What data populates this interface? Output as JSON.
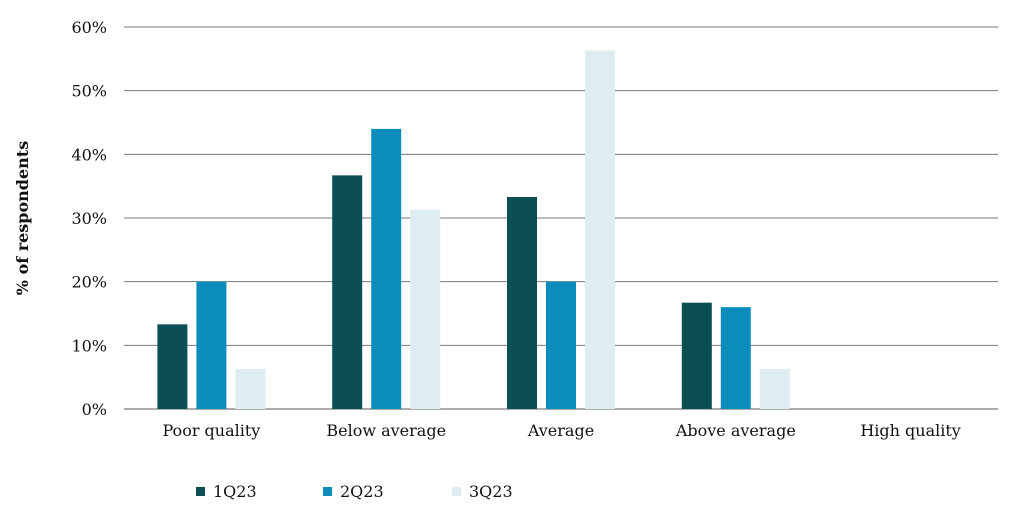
{
  "chart_data": {
    "type": "bar",
    "ylabel": "% of respondents",
    "categories": [
      "Poor quality",
      "Below average",
      "Average",
      "Above average",
      "High quality"
    ],
    "series": [
      {
        "name": "1Q23",
        "color": "#0b4f55",
        "values": [
          13.3,
          36.7,
          33.3,
          16.7,
          0
        ]
      },
      {
        "name": "2Q23",
        "color": "#0a8dbd",
        "values": [
          20.0,
          44.0,
          20.0,
          16.0,
          0
        ]
      },
      {
        "name": "3Q23",
        "color": "#deedf1",
        "values": [
          6.3,
          31.3,
          56.3,
          6.3,
          0
        ]
      }
    ],
    "ylim": [
      0,
      60
    ],
    "yticks": [
      0,
      10,
      20,
      30,
      40,
      50,
      60
    ],
    "ytick_labels": [
      "0%",
      "10%",
      "20%",
      "30%",
      "40%",
      "50%",
      "60%"
    ],
    "grid": true,
    "legend_position": "bottom-left"
  }
}
